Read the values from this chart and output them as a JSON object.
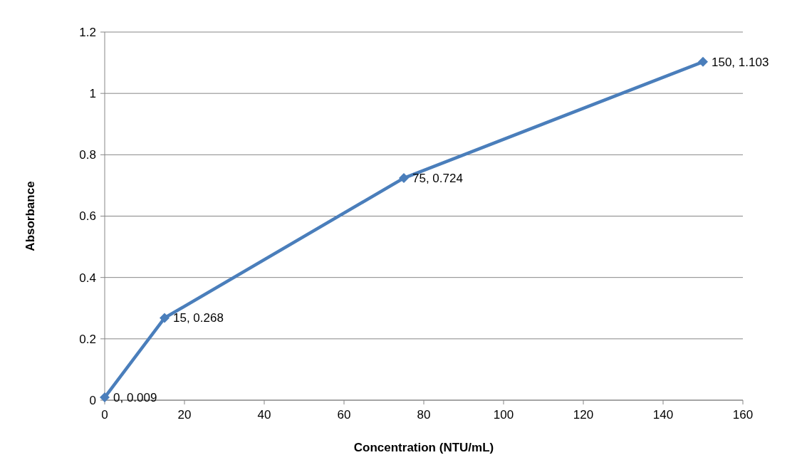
{
  "chart_data": {
    "type": "line",
    "xlabel": "Concentration (NTU/mL)",
    "ylabel": "Absorbance",
    "x": [
      0,
      15,
      75,
      150
    ],
    "series": [
      {
        "color": "#4a7ebb",
        "values": [
          0.009,
          0.268,
          0.724,
          1.103
        ],
        "value_labels": [
          "0, 0.009",
          "15, 0.268",
          "75, 0.724",
          "150, 1.103"
        ]
      }
    ],
    "xlim": [
      0,
      160
    ],
    "xticks": [
      0,
      20,
      40,
      60,
      80,
      100,
      120,
      140,
      160
    ],
    "ylim": [
      0,
      1.2
    ],
    "yticks": [
      0,
      0.2,
      0.4,
      0.6,
      0.8,
      1,
      1.2
    ],
    "grid": "y",
    "marker": "diamond",
    "line_style": "solid"
  }
}
